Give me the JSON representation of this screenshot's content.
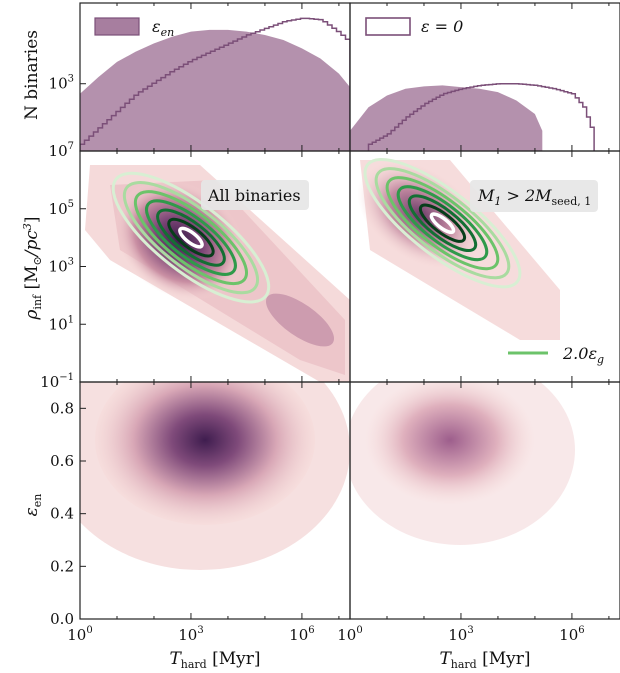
{
  "chart_data": [
    {
      "panel": "top-left",
      "type": "area",
      "ylabel": "N binaries",
      "yscale": "log",
      "yticks": [
        {
          "v": 3,
          "label": "10",
          "exp": "3"
        }
      ],
      "xscale": "log",
      "xlim": [
        0,
        7.3
      ],
      "ylim": [
        1.0,
        5.4
      ],
      "series": [
        {
          "name": "ε_en",
          "style": "filled",
          "color": "#a77e9f",
          "x": [
            0,
            0.5,
            1,
            1.5,
            2,
            2.5,
            3,
            3.5,
            4,
            4.5,
            5,
            5.5,
            6,
            6.5,
            7,
            7.3
          ],
          "y": [
            2.7,
            3.2,
            3.65,
            3.95,
            4.2,
            4.4,
            4.55,
            4.6,
            4.6,
            4.55,
            4.45,
            4.3,
            4.05,
            3.75,
            3.3,
            2.9
          ]
        },
        {
          "name": "ε = 0",
          "style": "step",
          "color": "#7b4f78",
          "x": [
            0,
            0.5,
            1,
            1.5,
            2,
            2.5,
            3,
            3.5,
            4,
            4.5,
            5,
            5.5,
            6,
            6.5,
            7,
            7.3
          ],
          "y": [
            1.2,
            1.7,
            2.2,
            2.7,
            3.05,
            3.4,
            3.7,
            3.95,
            4.2,
            4.45,
            4.65,
            4.85,
            4.95,
            4.9,
            4.5,
            4.2
          ]
        }
      ],
      "legend": {
        "entries": [
          "ε_en"
        ],
        "placement": "top-left"
      }
    },
    {
      "panel": "top-right",
      "type": "area",
      "xscale": "log",
      "xlim": [
        0,
        7.3
      ],
      "ylim": [
        1.0,
        5.4
      ],
      "series": [
        {
          "name": "ε_en",
          "style": "filled",
          "color": "#a77e9f",
          "x": [
            0,
            0.5,
            1,
            1.5,
            2,
            2.5,
            3,
            3.5,
            4,
            4.5,
            5,
            5.2
          ],
          "y": [
            1.6,
            2.3,
            2.65,
            2.85,
            2.92,
            2.95,
            2.9,
            2.85,
            2.75,
            2.5,
            2.1,
            1.6
          ]
        },
        {
          "name": "ε = 0",
          "style": "step",
          "color": "#7b4f78",
          "x": [
            0.5,
            1,
            1.5,
            2,
            2.5,
            3,
            3.5,
            4,
            4.5,
            5,
            5.5,
            6,
            6.3,
            6.6
          ],
          "y": [
            1.2,
            1.5,
            2.0,
            2.4,
            2.7,
            2.85,
            2.95,
            3.0,
            3.0,
            2.95,
            2.85,
            2.7,
            2.3,
            1.4
          ]
        }
      ],
      "legend": {
        "entries": [
          "ε = 0"
        ],
        "placement": "top-left"
      }
    },
    {
      "panel": "middle-left",
      "type": "heatmap",
      "ylabel": "ρ_inf [M⊙/pc³]",
      "yscale": "log",
      "xscale": "log",
      "xlim": [
        0,
        7.3
      ],
      "ylim": [
        -1,
        7
      ],
      "yticks": [
        {
          "v": -1,
          "label": "10",
          "exp": "−1"
        },
        {
          "v": 1,
          "label": "10",
          "exp": "1"
        },
        {
          "v": 3,
          "label": "10",
          "exp": "3"
        },
        {
          "v": 5,
          "label": "10",
          "exp": "5"
        },
        {
          "v": 7,
          "label": "10",
          "exp": "7"
        }
      ],
      "annotation": "All binaries",
      "density_peak": {
        "x": 3.0,
        "y": 4.3
      },
      "trend": {
        "slope": -0.75,
        "x_range": [
          0.2,
          7.3
        ]
      },
      "contours": {
        "center": {
          "x": 3.0,
          "y": 4.0
        },
        "levels": 6
      }
    },
    {
      "panel": "middle-right",
      "type": "heatmap",
      "xscale": "log",
      "xlim": [
        0,
        7.3
      ],
      "ylim": [
        -1,
        7
      ],
      "annotation": "M₁ > 2M_seed,1",
      "density_peak": {
        "x": 2.5,
        "y": 4.5
      },
      "contours": {
        "center": {
          "x": 2.5,
          "y": 4.5
        },
        "levels": 6
      },
      "legend": {
        "entries": [
          "2.0ε_g"
        ],
        "placement": "bottom-right",
        "color": "#6cc36a"
      }
    },
    {
      "panel": "bottom-left",
      "type": "heatmap",
      "ylabel": "ε_en",
      "xlabel": "T_hard [Myr]",
      "xscale": "log",
      "xlim": [
        0,
        7.3
      ],
      "ylim": [
        0.0,
        0.9
      ],
      "yticks": [
        {
          "v": 0.0,
          "label": "0.0"
        },
        {
          "v": 0.2,
          "label": "0.2"
        },
        {
          "v": 0.4,
          "label": "0.4"
        },
        {
          "v": 0.6,
          "label": "0.6"
        },
        {
          "v": 0.8,
          "label": "0.8"
        }
      ],
      "xticks": [
        {
          "v": 0,
          "label": "10",
          "exp": "0"
        },
        {
          "v": 3,
          "label": "10",
          "exp": "3"
        },
        {
          "v": 6,
          "label": "10",
          "exp": "6"
        }
      ],
      "density_peak": {
        "x": 3.2,
        "y": 0.72
      }
    },
    {
      "panel": "bottom-right",
      "type": "heatmap",
      "xlabel": "T_hard [Myr]",
      "xscale": "log",
      "xlim": [
        0,
        7.3
      ],
      "ylim": [
        0.0,
        0.9
      ],
      "xticks": [
        {
          "v": 0,
          "label": "10",
          "exp": "0"
        },
        {
          "v": 3,
          "label": "10",
          "exp": "3"
        },
        {
          "v": 6,
          "label": "10",
          "exp": "6"
        }
      ],
      "density_peak": {
        "x": 2.8,
        "y": 0.75
      }
    }
  ],
  "colors": {
    "hist_fill": "#a77e9f",
    "hist_step": "#7b4f78",
    "heat_low": "#f6d8d6",
    "heat_high": "#3f1d4f",
    "contour_palette": [
      "#d8efd3",
      "#a9dba0",
      "#6cc36a",
      "#2f9a4a",
      "#136f33",
      "#073d1a",
      "#ffffff"
    ]
  },
  "text": {
    "legend_eps_en": "ε",
    "legend_eps_en_sub": "en",
    "legend_eps0": "ε = 0",
    "annot_all": "All binaries",
    "annot_m1_a": "M",
    "annot_m1_b": "1",
    "annot_m1_c": " > 2M",
    "annot_m1_d": "seed, 1",
    "legend_eg_a": "2.0ε",
    "legend_eg_b": "g",
    "ylab_top": "N binaries",
    "ylab_mid_a": "ρ",
    "ylab_mid_b": "inf",
    "ylab_mid_c": " [M",
    "ylab_mid_d": "⊙",
    "ylab_mid_e": "/pc",
    "ylab_mid_f": "3",
    "ylab_mid_g": "]",
    "ylab_bot_a": "ε",
    "ylab_bot_b": "en",
    "xlab_a": "T",
    "xlab_b": "hard",
    "xlab_c": " [Myr]"
  }
}
